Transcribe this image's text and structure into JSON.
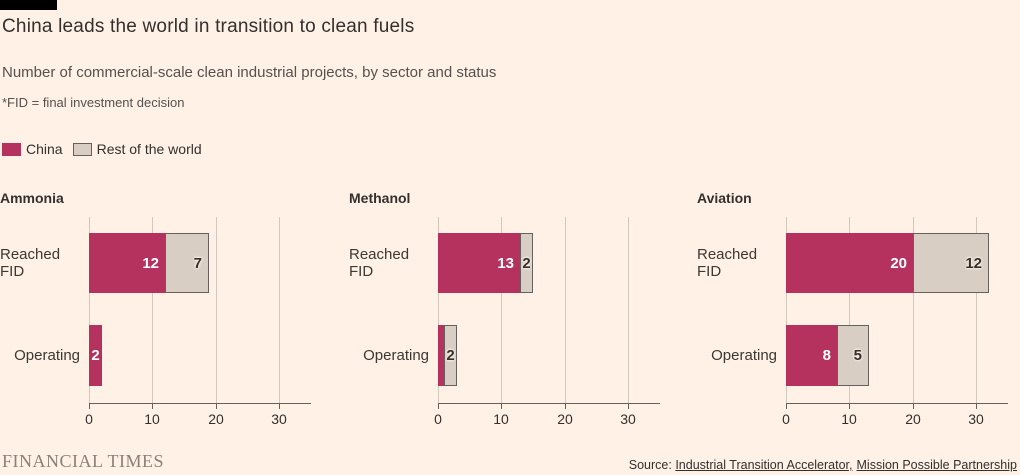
{
  "page": {
    "background": "#FFF1E5",
    "accent_bar_color": "#000000"
  },
  "header": {
    "title": "China leads the world in transition to clean fuels",
    "subtitle": "Number of commercial-scale clean industrial projects, by sector and status",
    "note": "*FID = final investment decision"
  },
  "legend": {
    "items": [
      {
        "label": "China",
        "color": "#B5325F",
        "border": ""
      },
      {
        "label": "Rest of the world",
        "color": "#D8CEC3",
        "border": "#66605C"
      }
    ]
  },
  "chart_data": {
    "type": "bar",
    "orientation": "horizontal",
    "stacked": true,
    "series_names": [
      "China",
      "Rest of the world"
    ],
    "colors": {
      "china": "#B5325F",
      "rest": "#D8CEC3"
    },
    "x_ticks": [
      "0",
      "10",
      "20",
      "30"
    ],
    "x_tick_values": [
      0,
      10,
      20,
      30
    ],
    "xlim": [
      0,
      35
    ],
    "grid": true,
    "categories": [
      "Reached FID",
      "Operating"
    ],
    "panels": [
      {
        "title": "Ammonia",
        "rows": [
          {
            "category": "Reached FID",
            "segments": [
              {
                "series": "china",
                "value": 12,
                "label": "12"
              },
              {
                "series": "rest",
                "value": 7,
                "label": "7"
              }
            ]
          },
          {
            "category": "Operating",
            "segments": [
              {
                "series": "china",
                "value": 2,
                "label": "2"
              }
            ]
          }
        ]
      },
      {
        "title": "Methanol",
        "rows": [
          {
            "category": "Reached FID",
            "segments": [
              {
                "series": "china",
                "value": 13,
                "label": "13"
              },
              {
                "series": "rest",
                "value": 2,
                "label": "2"
              }
            ]
          },
          {
            "category": "Operating",
            "segments": [
              {
                "series": "china",
                "value": 1,
                "label": ""
              },
              {
                "series": "rest",
                "value": 2,
                "label": "2"
              }
            ]
          }
        ]
      },
      {
        "title": "Aviation",
        "rows": [
          {
            "category": "Reached FID",
            "segments": [
              {
                "series": "china",
                "value": 20,
                "label": "20"
              },
              {
                "series": "rest",
                "value": 12,
                "label": "12"
              }
            ]
          },
          {
            "category": "Operating",
            "segments": [
              {
                "series": "china",
                "value": 8,
                "label": "8"
              },
              {
                "series": "rest",
                "value": 5,
                "label": "5"
              }
            ]
          }
        ]
      }
    ]
  },
  "footer": {
    "brand": "FINANCIAL TIMES",
    "source_prefix": "Source:",
    "links": [
      "Industrial Transition Accelerator,",
      "Mission Possible Partnership"
    ]
  }
}
